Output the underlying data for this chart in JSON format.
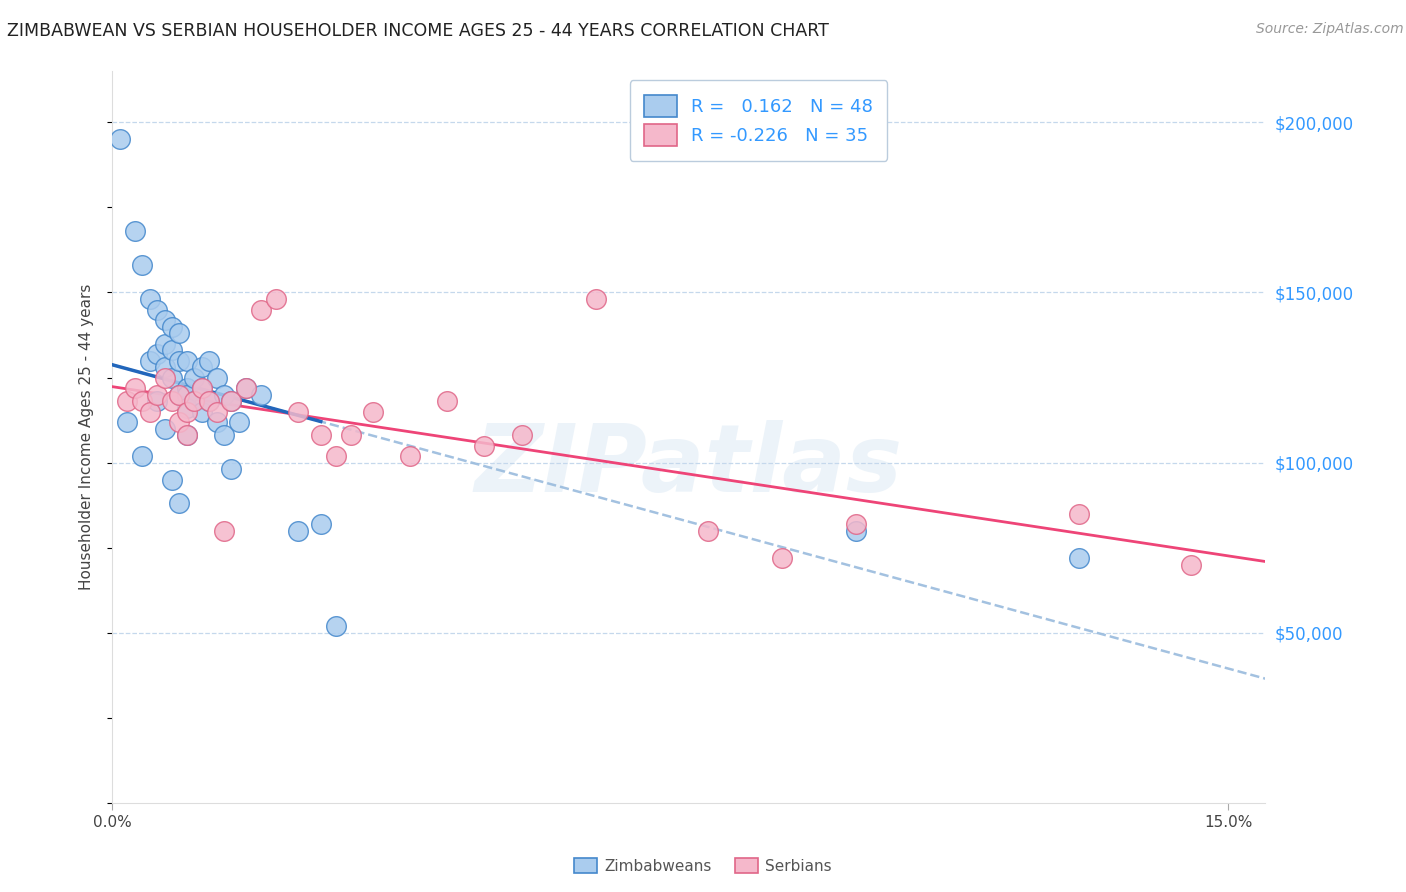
{
  "title": "ZIMBABWEAN VS SERBIAN HOUSEHOLDER INCOME AGES 25 - 44 YEARS CORRELATION CHART",
  "source": "Source: ZipAtlas.com",
  "ylabel": "Householder Income Ages 25 - 44 years",
  "ytick_labels": [
    "$50,000",
    "$100,000",
    "$150,000",
    "$200,000"
  ],
  "ytick_values": [
    50000,
    100000,
    150000,
    200000
  ],
  "ylim": [
    0,
    215000
  ],
  "xlim": [
    0.0,
    0.155
  ],
  "watermark": "ZIPatlas",
  "zim_face_color": "#aaccee",
  "zim_edge_color": "#4488cc",
  "ser_face_color": "#f5b8cb",
  "ser_edge_color": "#e06688",
  "zim_line_color": "#2266bb",
  "ser_line_color": "#ee4477",
  "dashed_color": "#99bbdd",
  "legend_zim_r": "0.162",
  "legend_zim_n": "48",
  "legend_ser_r": "-0.226",
  "legend_ser_n": "35",
  "zim_x": [
    0.001,
    0.002,
    0.003,
    0.004,
    0.004,
    0.005,
    0.005,
    0.006,
    0.006,
    0.006,
    0.007,
    0.007,
    0.007,
    0.007,
    0.008,
    0.008,
    0.008,
    0.008,
    0.009,
    0.009,
    0.009,
    0.009,
    0.01,
    0.01,
    0.01,
    0.01,
    0.01,
    0.011,
    0.011,
    0.012,
    0.012,
    0.012,
    0.013,
    0.013,
    0.014,
    0.014,
    0.015,
    0.015,
    0.016,
    0.016,
    0.017,
    0.018,
    0.02,
    0.025,
    0.028,
    0.03,
    0.1,
    0.13
  ],
  "zim_y": [
    195000,
    112000,
    168000,
    158000,
    102000,
    148000,
    130000,
    145000,
    132000,
    118000,
    142000,
    135000,
    128000,
    110000,
    140000,
    133000,
    125000,
    95000,
    138000,
    130000,
    120000,
    88000,
    130000,
    122000,
    120000,
    116000,
    108000,
    125000,
    118000,
    128000,
    122000,
    115000,
    130000,
    118000,
    125000,
    112000,
    120000,
    108000,
    118000,
    98000,
    112000,
    122000,
    120000,
    80000,
    82000,
    52000,
    80000,
    72000
  ],
  "ser_x": [
    0.002,
    0.003,
    0.004,
    0.005,
    0.006,
    0.007,
    0.008,
    0.009,
    0.009,
    0.01,
    0.01,
    0.011,
    0.012,
    0.013,
    0.014,
    0.015,
    0.016,
    0.018,
    0.02,
    0.022,
    0.025,
    0.028,
    0.03,
    0.032,
    0.035,
    0.04,
    0.045,
    0.05,
    0.055,
    0.065,
    0.08,
    0.09,
    0.1,
    0.13,
    0.145
  ],
  "ser_y": [
    118000,
    122000,
    118000,
    115000,
    120000,
    125000,
    118000,
    120000,
    112000,
    115000,
    108000,
    118000,
    122000,
    118000,
    115000,
    80000,
    118000,
    122000,
    145000,
    148000,
    115000,
    108000,
    102000,
    108000,
    115000,
    102000,
    118000,
    105000,
    108000,
    148000,
    80000,
    72000,
    82000,
    85000,
    70000
  ]
}
